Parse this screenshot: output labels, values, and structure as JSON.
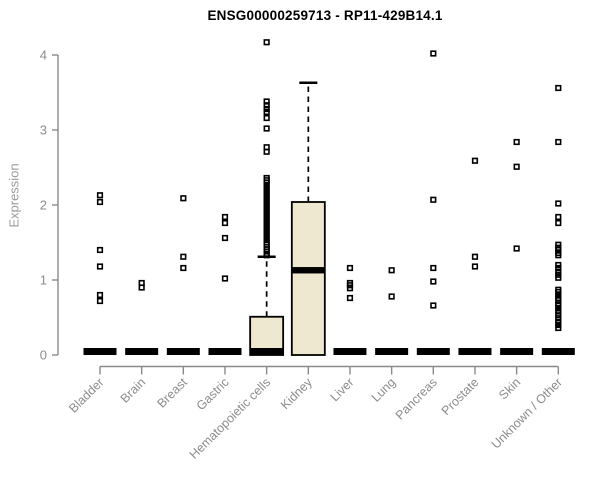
{
  "chart_data": {
    "type": "boxplot",
    "title": "ENSG00000259713 - RP11-429B14.1",
    "ylabel": "Expression",
    "xlabel": "",
    "ylim": [
      0,
      4
    ],
    "yticks": [
      0,
      1,
      2,
      3,
      4
    ],
    "grid": false,
    "legend": "none",
    "colors": {
      "box_fill": "#EDE8CF",
      "box_stroke": "#000000",
      "axis": "#8a8a8a",
      "tick_label": "#8c8c8c",
      "axis_label": "#9a9a9a",
      "title": "#000000",
      "background": "#ffffff"
    },
    "categories": [
      "Bladder",
      "Brain",
      "Breast",
      "Gastric",
      "Hematopoietic cells",
      "Kidney",
      "Liver",
      "Lung",
      "Pancreas",
      "Prostate",
      "Skin",
      "Unknown / Other"
    ],
    "series": [
      {
        "category": "Bladder",
        "q1": 0,
        "median": 0,
        "q3": 0,
        "whisker_low": 0,
        "whisker_high": 0,
        "outliers": [
          2.13,
          2.04,
          1.4,
          1.18,
          0.8,
          0.72
        ]
      },
      {
        "category": "Brain",
        "q1": 0,
        "median": 0,
        "q3": 0,
        "whisker_low": 0,
        "whisker_high": 0,
        "outliers": [
          0.96,
          0.9
        ]
      },
      {
        "category": "Breast",
        "q1": 0,
        "median": 0,
        "q3": 0,
        "whisker_low": 0,
        "whisker_high": 0,
        "outliers": [
          2.09,
          1.31,
          1.16
        ]
      },
      {
        "category": "Gastric",
        "q1": 0,
        "median": 0,
        "q3": 0,
        "whisker_low": 0,
        "whisker_high": 0,
        "outliers": [
          1.84,
          1.76,
          1.56,
          1.02
        ]
      },
      {
        "category": "Hematopoietic cells",
        "q1": 0,
        "median": 0,
        "q3": 0.51,
        "whisker_low": 0,
        "whisker_high": 1.31,
        "outliers": [
          4.17,
          3.38,
          3.33,
          3.28,
          3.24,
          3.16,
          3.02,
          2.77,
          2.71,
          2.36,
          2.33,
          2.3,
          2.26,
          2.22,
          2.18,
          2.14,
          2.1,
          2.06,
          2.02,
          1.98,
          1.94,
          1.9,
          1.86,
          1.82,
          1.78,
          1.74,
          1.7,
          1.66,
          1.62,
          1.58,
          1.54,
          1.5,
          1.47,
          1.44,
          1.41,
          1.38,
          1.35,
          1.33
        ]
      },
      {
        "category": "Kidney",
        "q1": 0,
        "median": 1.13,
        "q3": 2.04,
        "whisker_low": 0,
        "whisker_high": 3.63,
        "outliers": []
      },
      {
        "category": "Liver",
        "q1": 0,
        "median": 0,
        "q3": 0,
        "whisker_low": 0,
        "whisker_high": 0,
        "outliers": [
          1.16,
          0.96,
          0.93,
          0.89,
          0.76
        ]
      },
      {
        "category": "Lung",
        "q1": 0,
        "median": 0,
        "q3": 0,
        "whisker_low": 0,
        "whisker_high": 0,
        "outliers": [
          1.13,
          0.78
        ]
      },
      {
        "category": "Pancreas",
        "q1": 0,
        "median": 0,
        "q3": 0,
        "whisker_low": 0,
        "whisker_high": 0,
        "outliers": [
          4.02,
          2.07,
          1.16,
          0.98,
          0.66
        ]
      },
      {
        "category": "Prostate",
        "q1": 0,
        "median": 0,
        "q3": 0,
        "whisker_low": 0,
        "whisker_high": 0,
        "outliers": [
          2.59,
          1.31,
          1.18
        ]
      },
      {
        "category": "Skin",
        "q1": 0,
        "median": 0,
        "q3": 0,
        "whisker_low": 0,
        "whisker_high": 0,
        "outliers": [
          2.84,
          2.51,
          1.42
        ]
      },
      {
        "category": "Unknown / Other",
        "q1": 0,
        "median": 0,
        "q3": 0,
        "whisker_low": 0,
        "whisker_high": 0,
        "outliers": [
          3.56,
          2.84,
          2.02,
          1.84,
          1.76,
          1.47,
          1.43,
          1.4,
          1.36,
          1.33,
          1.2,
          1.16,
          1.11,
          1.07,
          1.03,
          0.87,
          0.84,
          0.8,
          0.76,
          0.73,
          0.69,
          0.66,
          0.62,
          0.58,
          0.53,
          0.49,
          0.44,
          0.4,
          0.36
        ]
      }
    ]
  }
}
